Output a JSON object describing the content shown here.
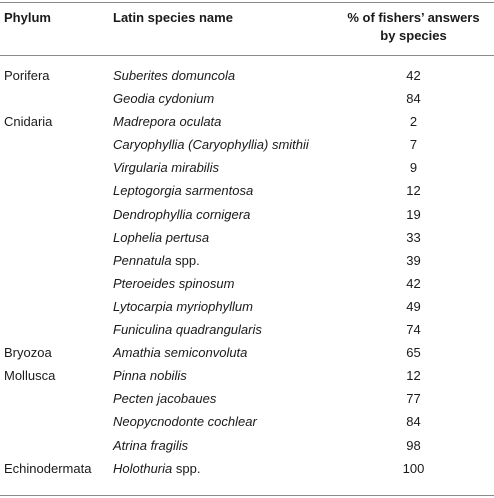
{
  "headers": {
    "phylum": "Phylum",
    "species": "Latin species name",
    "pct_line1": "% of fishers’ answers",
    "pct_line2": "by species"
  },
  "rows": [
    {
      "phylum": "Porifera",
      "species": "Suberites domuncola",
      "suffix": "",
      "pct": "42"
    },
    {
      "phylum": "",
      "species": "Geodia cydonium",
      "suffix": "",
      "pct": "84"
    },
    {
      "phylum": "Cnidaria",
      "species": "Madrepora oculata",
      "suffix": "",
      "pct": "2"
    },
    {
      "phylum": "",
      "species": "Caryophyllia (Caryophyllia) smithii",
      "suffix": "",
      "pct": "7"
    },
    {
      "phylum": "",
      "species": "Virgularia mirabilis",
      "suffix": "",
      "pct": "9"
    },
    {
      "phylum": "",
      "species": "Leptogorgia sarmentosa",
      "suffix": "",
      "pct": "12"
    },
    {
      "phylum": "",
      "species": "Dendrophyllia cornigera",
      "suffix": "",
      "pct": "19"
    },
    {
      "phylum": "",
      "species": "Lophelia pertusa",
      "suffix": "",
      "pct": "33"
    },
    {
      "phylum": "",
      "species": "Pennatula",
      "suffix": " spp.",
      "pct": "39"
    },
    {
      "phylum": "",
      "species": "Pteroeides spinosum",
      "suffix": "",
      "pct": "42"
    },
    {
      "phylum": "",
      "species": "Lytocarpia myriophyllum",
      "suffix": "",
      "pct": "49"
    },
    {
      "phylum": "",
      "species": "Funiculina quadrangularis",
      "suffix": "",
      "pct": "74"
    },
    {
      "phylum": "Bryozoa",
      "species": "Amathia semiconvoluta",
      "suffix": "",
      "pct": "65"
    },
    {
      "phylum": "Mollusca",
      "species": "Pinna nobilis",
      "suffix": "",
      "pct": "12"
    },
    {
      "phylum": "",
      "species": "Pecten jacobaues",
      "suffix": "",
      "pct": "77"
    },
    {
      "phylum": "",
      "species": "Neopycnodonte cochlear",
      "suffix": "",
      "pct": "84"
    },
    {
      "phylum": "",
      "species": "Atrina fragilis",
      "suffix": "",
      "pct": "98"
    },
    {
      "phylum": "Echinodermata",
      "species": "Holothuria",
      "suffix": " spp.",
      "pct": "100"
    }
  ]
}
